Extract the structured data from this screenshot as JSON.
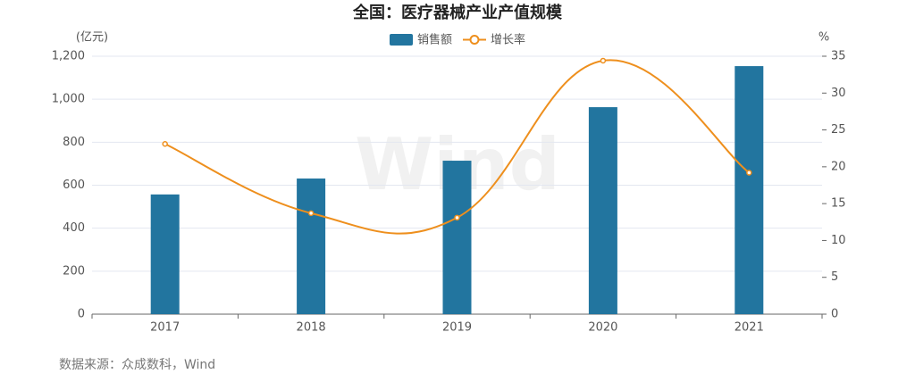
{
  "chart_data": {
    "type": "bar_line",
    "title": "全国：医疗器械产业产值规模",
    "y_label": "(亿元)",
    "y2_label": "%",
    "categories": [
      "2017",
      "2018",
      "2019",
      "2020",
      "2021"
    ],
    "series": [
      {
        "name": "销售额",
        "type": "bar",
        "color": "#22759f",
        "values": [
          557,
          631,
          714,
          963,
          1154
        ]
      },
      {
        "name": "增长率",
        "type": "line",
        "axis": "y2",
        "color": "#ee8f1d",
        "values": [
          23.1,
          13.7,
          13.1,
          34.4,
          19.2
        ]
      }
    ],
    "ylim": [
      0,
      1200
    ],
    "yticks": [
      0,
      200,
      400,
      600,
      800,
      {
        "value": 1000,
        "label": "1,000"
      },
      {
        "value": 1200,
        "label": "1,200"
      }
    ],
    "y2lim": [
      0,
      35
    ],
    "y2ticks": [
      0,
      5,
      10,
      15,
      20,
      25,
      30,
      35
    ],
    "grid": true,
    "legend": "top",
    "watermark": "Wind",
    "source": "数据来源：众成数科，Wind"
  }
}
